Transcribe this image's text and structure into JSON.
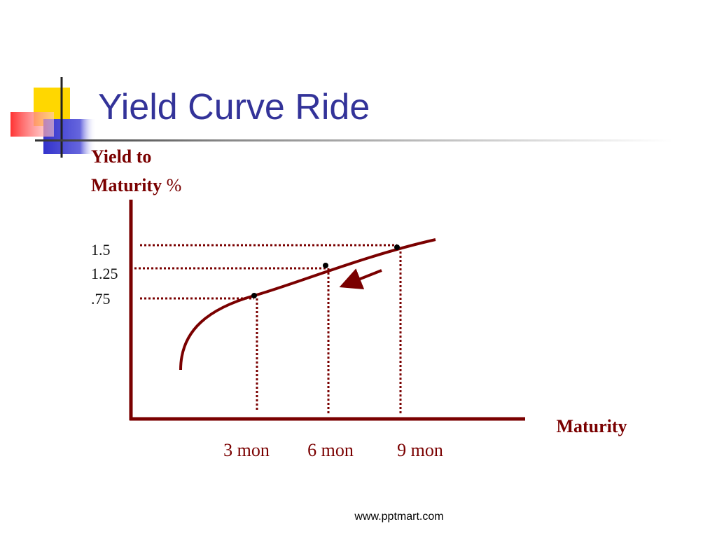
{
  "title": "Yield Curve Ride",
  "y_axis_label": {
    "line1": "Yield to",
    "line2": "Maturity",
    "unit": "%"
  },
  "x_axis_label": "Maturity",
  "y_labels": [
    "1.5",
    "1.25",
    ".75"
  ],
  "x_labels": [
    "3 mon",
    "6 mon",
    "9 mon"
  ],
  "footer": "www.pptmart.com"
}
